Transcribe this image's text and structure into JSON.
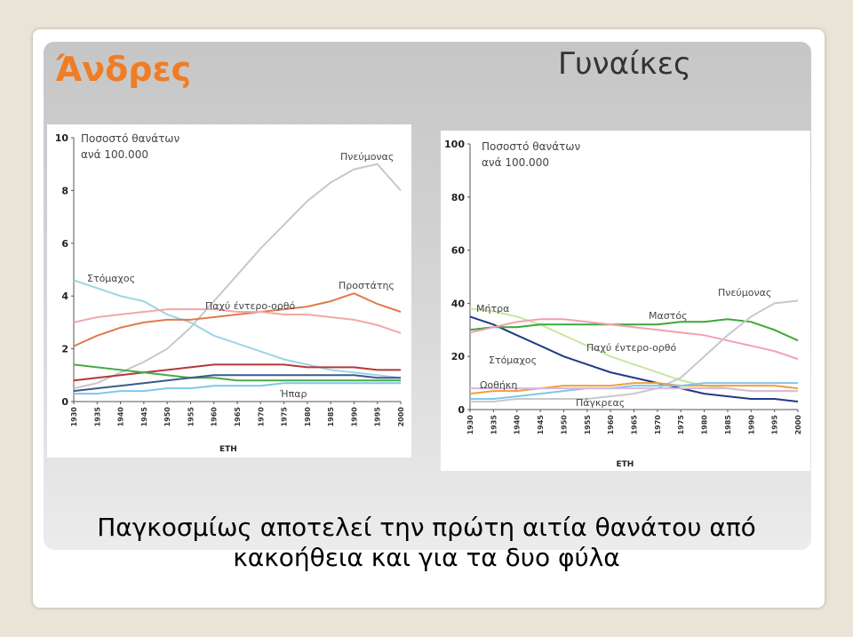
{
  "slide": {
    "men_title": "Άνδρες",
    "women_title": "Γυναίκες",
    "caption_line1": "Παγκοσμίως αποτελεί την πρώτη αιτία θανάτου από",
    "caption_line2": "κακοήθεια και για τα δυο φύλα"
  },
  "chart_data": [
    {
      "type": "line",
      "title": "",
      "ylabel_line1": "Ποσοστό θανάτων",
      "ylabel_line2": "ανά 100.000",
      "xlabel": "ETH",
      "ylim": [
        0,
        100
      ],
      "yticks": [
        "0",
        "2",
        "4",
        "6",
        "8",
        "10"
      ],
      "x": [
        1930,
        1935,
        1940,
        1945,
        1950,
        1955,
        1960,
        1965,
        1970,
        1975,
        1980,
        1985,
        1990,
        1995,
        2000
      ],
      "series": [
        {
          "name": "Πνεύμονας",
          "color": "#c8c8c8",
          "values": [
            5,
            7,
            11,
            15,
            20,
            28,
            38,
            48,
            58,
            67,
            76,
            83,
            88,
            90,
            80
          ]
        },
        {
          "name": "Στόμαχος",
          "color": "#9fd3e6",
          "values": [
            46,
            43,
            40,
            38,
            33,
            30,
            25,
            22,
            19,
            16,
            14,
            12,
            11,
            10,
            9
          ]
        },
        {
          "name": "Προστάτης",
          "color": "#e07a4a",
          "values": [
            21,
            25,
            28,
            30,
            31,
            31,
            32,
            33,
            34,
            35,
            36,
            38,
            41,
            37,
            34
          ]
        },
        {
          "name": "Παχύ έντερο-ορθό",
          "color": "#f2a8a8",
          "values": [
            30,
            32,
            33,
            34,
            35,
            35,
            35,
            34,
            34,
            33,
            33,
            32,
            31,
            29,
            26
          ]
        },
        {
          "name": "",
          "color": "#b03a3a",
          "values": [
            8,
            9,
            10,
            11,
            12,
            13,
            14,
            14,
            14,
            14,
            13,
            13,
            13,
            12,
            12
          ]
        },
        {
          "name": "",
          "color": "#4aa84a",
          "values": [
            14,
            13,
            12,
            11,
            10,
            9,
            9,
            8,
            8,
            8,
            8,
            8,
            8,
            8,
            8
          ]
        },
        {
          "name": "Ήπαρ",
          "color": "#3a5a8a",
          "values": [
            4,
            5,
            6,
            7,
            8,
            9,
            10,
            10,
            10,
            10,
            10,
            10,
            10,
            9,
            9
          ]
        },
        {
          "name": "",
          "color": "#7ec8e8",
          "values": [
            3,
            3,
            4,
            4,
            5,
            5,
            6,
            6,
            6,
            7,
            7,
            7,
            7,
            7,
            7
          ]
        }
      ],
      "labels": [
        "Πνεύμονας",
        "Στόμαχος",
        "Προστάτης",
        "Παχύ έντερο-ορθό",
        "Ήπαρ"
      ]
    },
    {
      "type": "line",
      "title": "",
      "ylabel_line1": "Ποσοστό θανάτων",
      "ylabel_line2": "ανά 100.000",
      "xlabel": "ETH",
      "ylim": [
        0,
        100
      ],
      "yticks": [
        "0",
        "20",
        "40",
        "60",
        "80",
        "100"
      ],
      "x": [
        1930,
        1935,
        1940,
        1945,
        1950,
        1955,
        1960,
        1965,
        1970,
        1975,
        1980,
        1985,
        1990,
        1995,
        2000
      ],
      "series": [
        {
          "name": "Μήτρα",
          "color": "#c8e6a0",
          "values": [
            38,
            37,
            35,
            32,
            28,
            24,
            20,
            17,
            14,
            11,
            9,
            8,
            7,
            7,
            7
          ]
        },
        {
          "name": "Στόμαχος",
          "color": "#1f3a8a",
          "values": [
            35,
            32,
            28,
            24,
            20,
            17,
            14,
            12,
            10,
            8,
            6,
            5,
            4,
            4,
            3
          ]
        },
        {
          "name": "Μαστός",
          "color": "#3aa83a",
          "values": [
            30,
            31,
            31,
            32,
            32,
            32,
            32,
            32,
            32,
            33,
            33,
            34,
            33,
            30,
            26
          ]
        },
        {
          "name": "Παχύ έντερο-ορθό",
          "color": "#f2a0b0",
          "values": [
            29,
            31,
            33,
            34,
            34,
            33,
            32,
            31,
            30,
            29,
            28,
            26,
            24,
            22,
            19
          ]
        },
        {
          "name": "Πνεύμονας",
          "color": "#c8c8c8",
          "values": [
            3,
            3,
            4,
            4,
            4,
            4,
            5,
            6,
            8,
            12,
            20,
            28,
            35,
            40,
            41
          ]
        },
        {
          "name": "Ωοθήκη",
          "color": "#f0a040",
          "values": [
            6,
            7,
            7,
            8,
            9,
            9,
            9,
            10,
            10,
            9,
            9,
            9,
            9,
            9,
            8
          ]
        },
        {
          "name": "Πάγκρεας",
          "color": "#7ec8e8",
          "values": [
            4,
            4,
            5,
            6,
            7,
            8,
            8,
            9,
            9,
            9,
            10,
            10,
            10,
            10,
            10
          ]
        },
        {
          "name": "",
          "color": "#d8b8e0",
          "values": [
            8,
            8,
            8,
            8,
            8,
            8,
            8,
            8,
            8,
            8,
            8,
            8,
            7,
            7,
            7
          ]
        }
      ],
      "labels": [
        "Μήτρα",
        "Στόμαχος",
        "Μαστός",
        "Παχύ έντερο-ορθό",
        "Πνεύμονας",
        "Ωοθήκη",
        "Πάγκρεας"
      ]
    }
  ]
}
